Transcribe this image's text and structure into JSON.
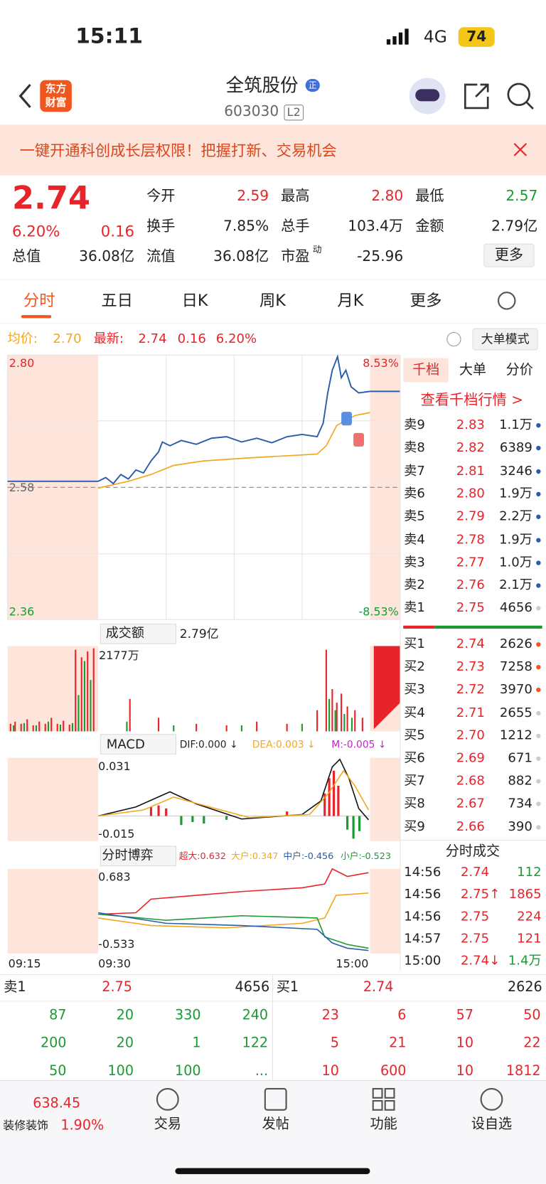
{
  "status": {
    "time": "15:11",
    "network": "4G",
    "battery": "74"
  },
  "header": {
    "logo": [
      "东方",
      "财富"
    ],
    "name": "全筑股份",
    "tag": "正",
    "code": "603030",
    "level": "L2"
  },
  "banner": "一键开通科创成长层权限！把握打新、交易机会",
  "quote": {
    "price": "2.74",
    "pct": "6.20%",
    "change": "0.16",
    "stats": [
      {
        "label": "今开",
        "value": "2.59"
      },
      {
        "label": "最高",
        "value": "2.80"
      },
      {
        "label": "最低",
        "value": "2.57"
      },
      {
        "label": "换手",
        "value": "7.85%"
      },
      {
        "label": "总手",
        "value": "103.4万"
      },
      {
        "label": "金额",
        "value": "2.79亿"
      },
      {
        "label": "总值",
        "value": "36.08亿"
      },
      {
        "label": "流值",
        "value": "36.08亿"
      },
      {
        "label": "市盈",
        "sup": "动",
        "value": "-25.96"
      }
    ],
    "more": "更多"
  },
  "tabs": [
    "分时",
    "五日",
    "日K",
    "周K",
    "月K",
    "更多"
  ],
  "info": {
    "avg_label": "均价:",
    "avg": "2.70",
    "last_label": "最新:",
    "last": "2.74",
    "change": "0.16",
    "pct": "6.20%",
    "mode": "大单模式"
  },
  "price_chart": {
    "high": "2.80",
    "high_pct": "8.53%",
    "base": "2.58",
    "low": "2.36",
    "low_pct": "-8.53%"
  },
  "volume_chart": {
    "label": "成交额",
    "total": "2.79亿",
    "max": "2177万"
  },
  "macd_chart": {
    "label": "MACD",
    "dif": "DIF:0.000 ↓",
    "dea": "DEA:0.003 ↓",
    "m": "M:-0.005 ↓",
    "max": "0.031",
    "min": "-0.015"
  },
  "flow_chart": {
    "label": "分时博弈",
    "super": "超大:0.632",
    "large": "大户:0.347",
    "medium": "中户:-0.456",
    "small": "小户:-0.523",
    "max": "0.683",
    "min": "-0.533"
  },
  "times": [
    "09:15",
    "09:30",
    "15:00"
  ],
  "book": {
    "tabs": [
      "千档",
      "大单",
      "分价"
    ],
    "link": "查看千档行情 >",
    "asks": [
      {
        "label": "卖9",
        "price": "2.83",
        "volume": "1.1万"
      },
      {
        "label": "卖8",
        "price": "2.82",
        "volume": "6389"
      },
      {
        "label": "卖7",
        "price": "2.81",
        "volume": "3246"
      },
      {
        "label": "卖6",
        "price": "2.80",
        "volume": "1.9万"
      },
      {
        "label": "卖5",
        "price": "2.79",
        "volume": "2.2万"
      },
      {
        "label": "卖4",
        "price": "2.78",
        "volume": "1.9万"
      },
      {
        "label": "卖3",
        "price": "2.77",
        "volume": "1.0万"
      },
      {
        "label": "卖2",
        "price": "2.76",
        "volume": "2.1万"
      },
      {
        "label": "卖1",
        "price": "2.75",
        "volume": "4656"
      }
    ],
    "bids": [
      {
        "label": "买1",
        "price": "2.74",
        "volume": "2626"
      },
      {
        "label": "买2",
        "price": "2.73",
        "volume": "7258"
      },
      {
        "label": "买3",
        "price": "2.72",
        "volume": "3970"
      },
      {
        "label": "买4",
        "price": "2.71",
        "volume": "2655"
      },
      {
        "label": "买5",
        "price": "2.70",
        "volume": "1212"
      },
      {
        "label": "买6",
        "price": "2.69",
        "volume": "671"
      },
      {
        "label": "买7",
        "price": "2.68",
        "volume": "882"
      },
      {
        "label": "买8",
        "price": "2.67",
        "volume": "734"
      },
      {
        "label": "买9",
        "price": "2.66",
        "volume": "390"
      }
    ],
    "trades_title": "分时成交",
    "trades": [
      {
        "time": "14:56",
        "price": "2.74",
        "volume": "112"
      },
      {
        "time": "14:56",
        "price": "2.75↑",
        "volume": "1865"
      },
      {
        "time": "14:56",
        "price": "2.75",
        "volume": "224"
      },
      {
        "time": "14:57",
        "price": "2.75",
        "volume": "121"
      },
      {
        "time": "15:00",
        "price": "2.74↓",
        "volume": "1.4万"
      }
    ]
  },
  "depth": {
    "ask": {
      "label": "卖1",
      "price": "2.75",
      "volume": "4656",
      "orders": [
        [
          "87",
          "20",
          "330",
          "240"
        ],
        [
          "200",
          "20",
          "1",
          "122"
        ],
        [
          "50",
          "100",
          "100",
          "..."
        ]
      ]
    },
    "bid": {
      "label": "买1",
      "price": "2.74",
      "volume": "2626",
      "orders": [
        [
          "23",
          "6",
          "57",
          "50"
        ],
        [
          "5",
          "21",
          "10",
          "22"
        ],
        [
          "10",
          "600",
          "10",
          "1812"
        ]
      ]
    }
  },
  "nav": {
    "index": "638.45",
    "sector": "装修装饰",
    "sector_pct": "1.90%",
    "items": [
      "交易",
      "发帖",
      "功能",
      "设自选"
    ]
  }
}
